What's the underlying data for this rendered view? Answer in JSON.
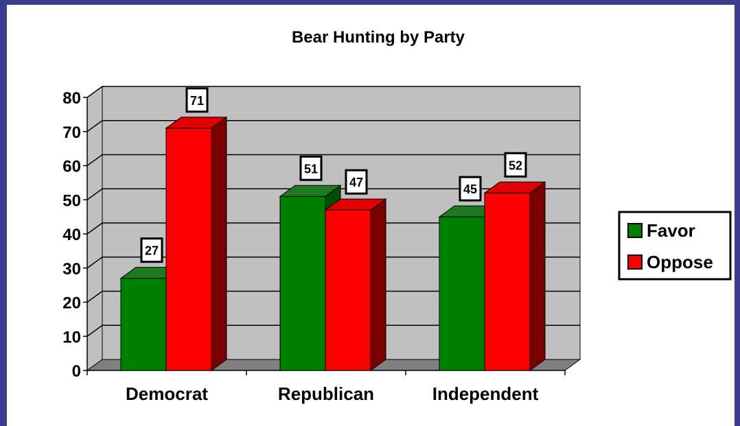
{
  "colors": {
    "favor": "#008000",
    "favor_top": "#1f7a1f",
    "favor_side": "#004d00",
    "oppose": "#ff0000",
    "oppose_top": "#e00000",
    "oppose_side": "#7a0000",
    "wall": "#c0c0c0",
    "floor": "#808080",
    "frame": "#3b3b8f"
  },
  "chart_data": {
    "type": "bar",
    "title": "Bear Hunting by Party",
    "categories": [
      "Democrat",
      "Republican",
      "Independent"
    ],
    "series": [
      {
        "name": "Favor",
        "values": [
          27,
          51,
          45
        ]
      },
      {
        "name": "Oppose",
        "values": [
          71,
          47,
          52
        ]
      }
    ],
    "ylim": [
      0,
      80
    ],
    "yticks": [
      0,
      10,
      20,
      30,
      40,
      50,
      60,
      70,
      80
    ],
    "xlabel": "",
    "ylabel": "",
    "grid": true,
    "legend": "right",
    "style": "3d-clustered-column"
  }
}
